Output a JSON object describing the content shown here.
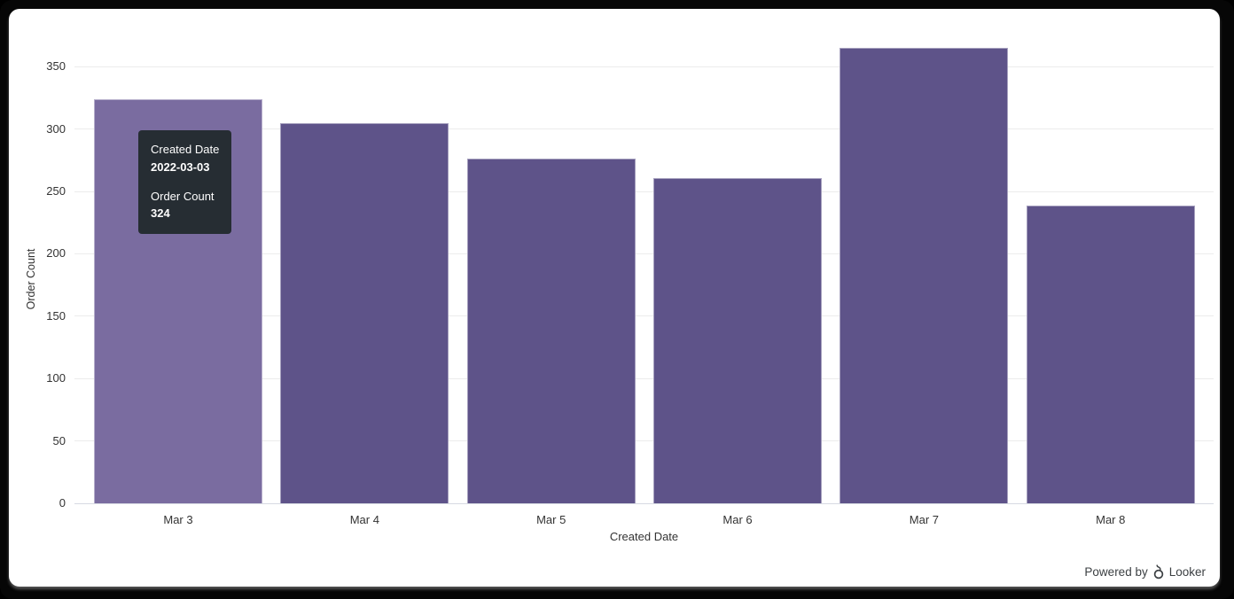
{
  "window": {
    "frame_background": "#000000",
    "panel_background": "#ffffff"
  },
  "chart_data": {
    "type": "bar",
    "title": "",
    "categories": [
      "Mar 3",
      "Mar 4",
      "Mar 5",
      "Mar 6",
      "Mar 7",
      "Mar 8"
    ],
    "values": [
      324,
      305,
      276,
      261,
      365,
      239
    ],
    "series_name": "Order Count",
    "xlabel": "Created Date",
    "ylabel": "Order Count",
    "yticks": [
      0,
      50,
      100,
      150,
      200,
      250,
      300,
      350
    ],
    "ylim": [
      0,
      375
    ],
    "grid": true,
    "legend": "none",
    "hover_index": 0
  },
  "tooltip": {
    "dimension_label": "Created Date",
    "dimension_value": "2022-03-03",
    "measure_label": "Order Count",
    "measure_value": "324"
  },
  "branding": {
    "powered_by": "Powered by",
    "brand": "Looker"
  },
  "colors": {
    "bar": "#5e5389",
    "bar_hover": "#7a6ca0",
    "bar_border": "rgba(255,255,255,0.45)",
    "gridline": "#ececec",
    "axis_line": "#d7dae2",
    "axis_text": "#333333",
    "tooltip_bg": "#262d33",
    "tooltip_text": "#ffffff",
    "branding_text": "#3c4043"
  }
}
